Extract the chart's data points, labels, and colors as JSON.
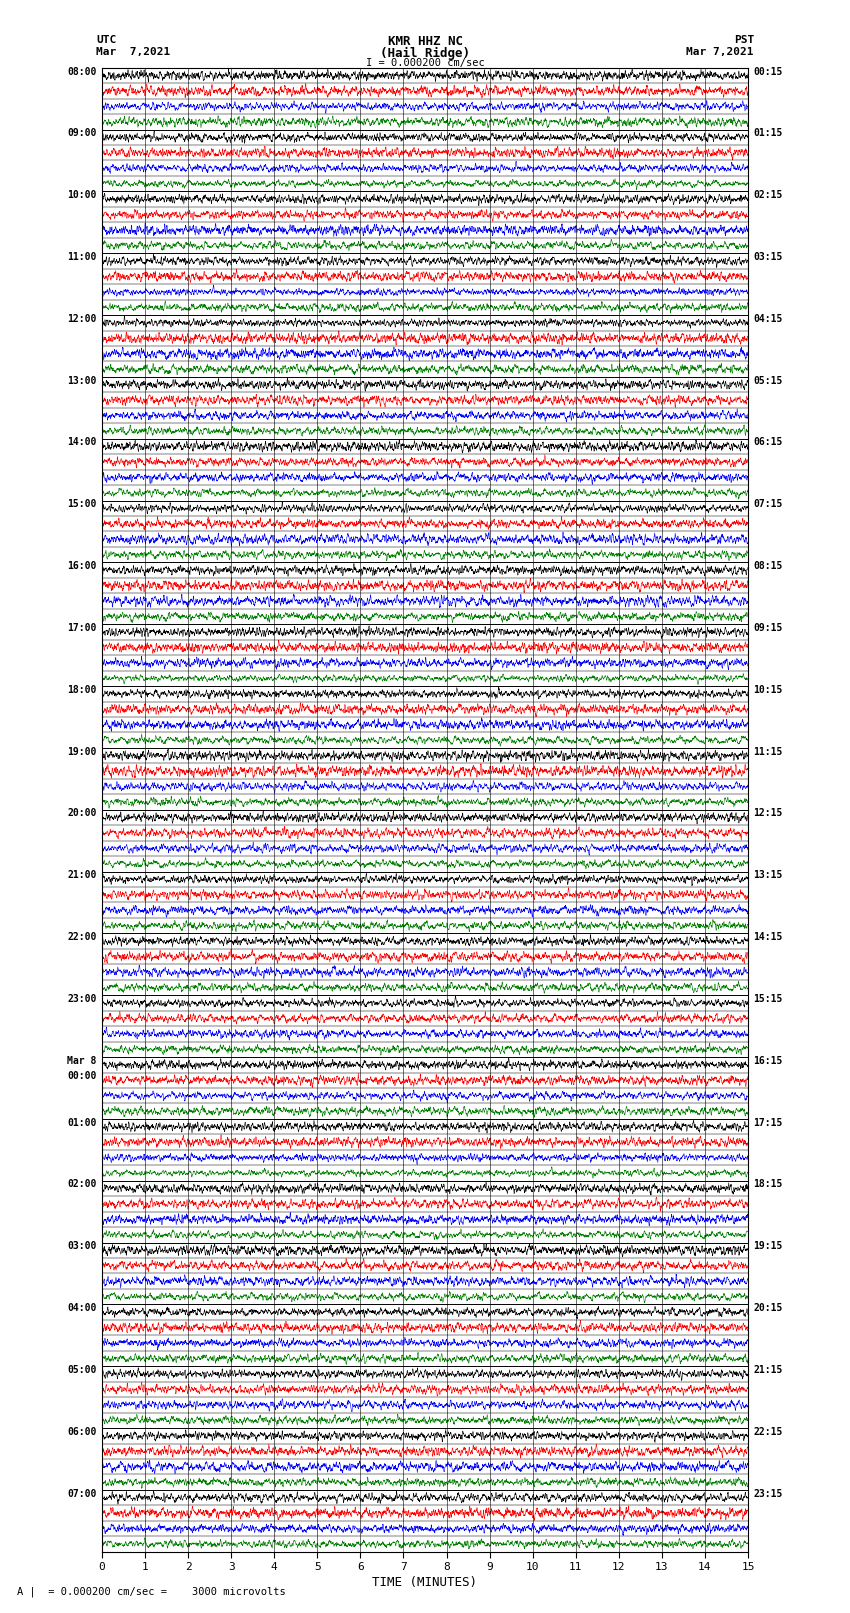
{
  "title_line1": "KMR HHZ NC",
  "title_line2": "(Hail Ridge)",
  "scale_text": "I = 0.000200 cm/sec",
  "left_label": "UTC",
  "left_date": "Mar  7,2021",
  "right_label": "PST",
  "right_date": "Mar 7,2021",
  "bottom_label": "TIME (MINUTES)",
  "bottom_note": "A |  = 0.000200 cm/sec =    3000 microvolts",
  "utc_times": [
    "08:00",
    "09:00",
    "10:00",
    "11:00",
    "12:00",
    "13:00",
    "14:00",
    "15:00",
    "16:00",
    "17:00",
    "18:00",
    "19:00",
    "20:00",
    "21:00",
    "22:00",
    "23:00",
    "Mar 8\n00:00",
    "01:00",
    "02:00",
    "03:00",
    "04:00",
    "05:00",
    "06:00",
    "07:00"
  ],
  "pst_times": [
    "00:15",
    "01:15",
    "02:15",
    "03:15",
    "04:15",
    "05:15",
    "06:15",
    "07:15",
    "08:15",
    "09:15",
    "10:15",
    "11:15",
    "12:15",
    "13:15",
    "14:15",
    "15:15",
    "16:15",
    "17:15",
    "18:15",
    "19:15",
    "20:15",
    "21:15",
    "22:15",
    "23:15"
  ],
  "colors": [
    "black",
    "red",
    "blue",
    "green"
  ],
  "n_rows": 24,
  "traces_per_row": 4,
  "minutes_per_row": 15,
  "fig_width": 8.5,
  "fig_height": 16.13,
  "bg_color": "white",
  "trace_lw": 0.4,
  "x_ticks": [
    0,
    1,
    2,
    3,
    4,
    5,
    6,
    7,
    8,
    9,
    10,
    11,
    12,
    13,
    14,
    15
  ],
  "x_lim": [
    0,
    15
  ],
  "total_points": 4500,
  "amplitude": 0.95,
  "freq_multipliers": [
    3.0,
    2.5,
    2.0,
    1.5
  ]
}
